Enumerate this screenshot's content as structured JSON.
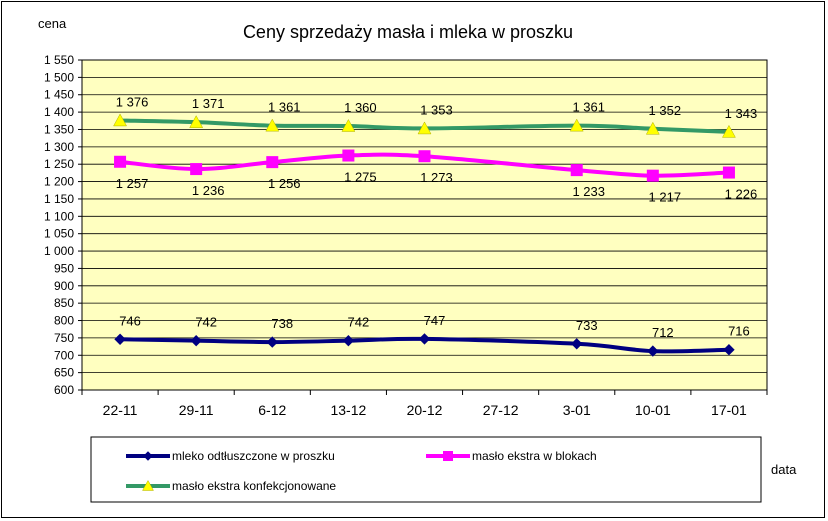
{
  "chart_data": {
    "type": "line",
    "title": "Ceny sprzedaży masła i mleka w proszku",
    "ylabel": "cena",
    "xlabel": "data",
    "ylim": [
      600,
      1550
    ],
    "ystep": 50,
    "grid": true,
    "legend_position": "bottom",
    "plot_background": "#ffffc0",
    "categories": [
      "22-11",
      "29-11",
      "6-12",
      "13-12",
      "20-12",
      "27-12",
      "3-01",
      "10-01",
      "17-01"
    ],
    "y_tick_labels": [
      "600",
      "650",
      "700",
      "750",
      "800",
      "850",
      "900",
      "950",
      "1 000",
      "1 050",
      "1 100",
      "1 150",
      "1 200",
      "1 250",
      "1 300",
      "1 350",
      "1 400",
      "1 450",
      "1 500",
      "1 550"
    ],
    "series": [
      {
        "name": "mleko odtłuszczone w proszku",
        "color": "#000080",
        "marker": "diamond",
        "points": [
          [
            0,
            746
          ],
          [
            1,
            742
          ],
          [
            2,
            738
          ],
          [
            3,
            742
          ],
          [
            4,
            747
          ],
          [
            6,
            733
          ],
          [
            7,
            712
          ],
          [
            8,
            716
          ]
        ],
        "labels": [
          "746",
          "742",
          "738",
          "742",
          "747",
          "733",
          "712",
          "716"
        ],
        "label_pos": "above"
      },
      {
        "name": "masło ekstra w blokach",
        "color": "#ff00ff",
        "marker": "square",
        "points": [
          [
            0,
            1257
          ],
          [
            1,
            1236
          ],
          [
            2,
            1256
          ],
          [
            3,
            1275
          ],
          [
            4,
            1273
          ],
          [
            6,
            1233
          ],
          [
            7,
            1217
          ],
          [
            8,
            1226
          ]
        ],
        "labels": [
          "1 257",
          "1 236",
          "1 256",
          "1 275",
          "1 273",
          "1 233",
          "1 217",
          "1 226"
        ],
        "label_pos": "below"
      },
      {
        "name": "masło ekstra konfekcjonowane",
        "color": "#339966",
        "marker": "triangle",
        "marker_color": "#ffff00",
        "points": [
          [
            0,
            1376
          ],
          [
            1,
            1371
          ],
          [
            2,
            1361
          ],
          [
            3,
            1360
          ],
          [
            4,
            1353
          ],
          [
            6,
            1361
          ],
          [
            7,
            1352
          ],
          [
            8,
            1343
          ]
        ],
        "labels": [
          "1 376",
          "1 371",
          "1 361",
          "1 360",
          "1 353",
          "1 361",
          "1 352",
          "1 343"
        ],
        "label_pos": "above"
      }
    ]
  }
}
